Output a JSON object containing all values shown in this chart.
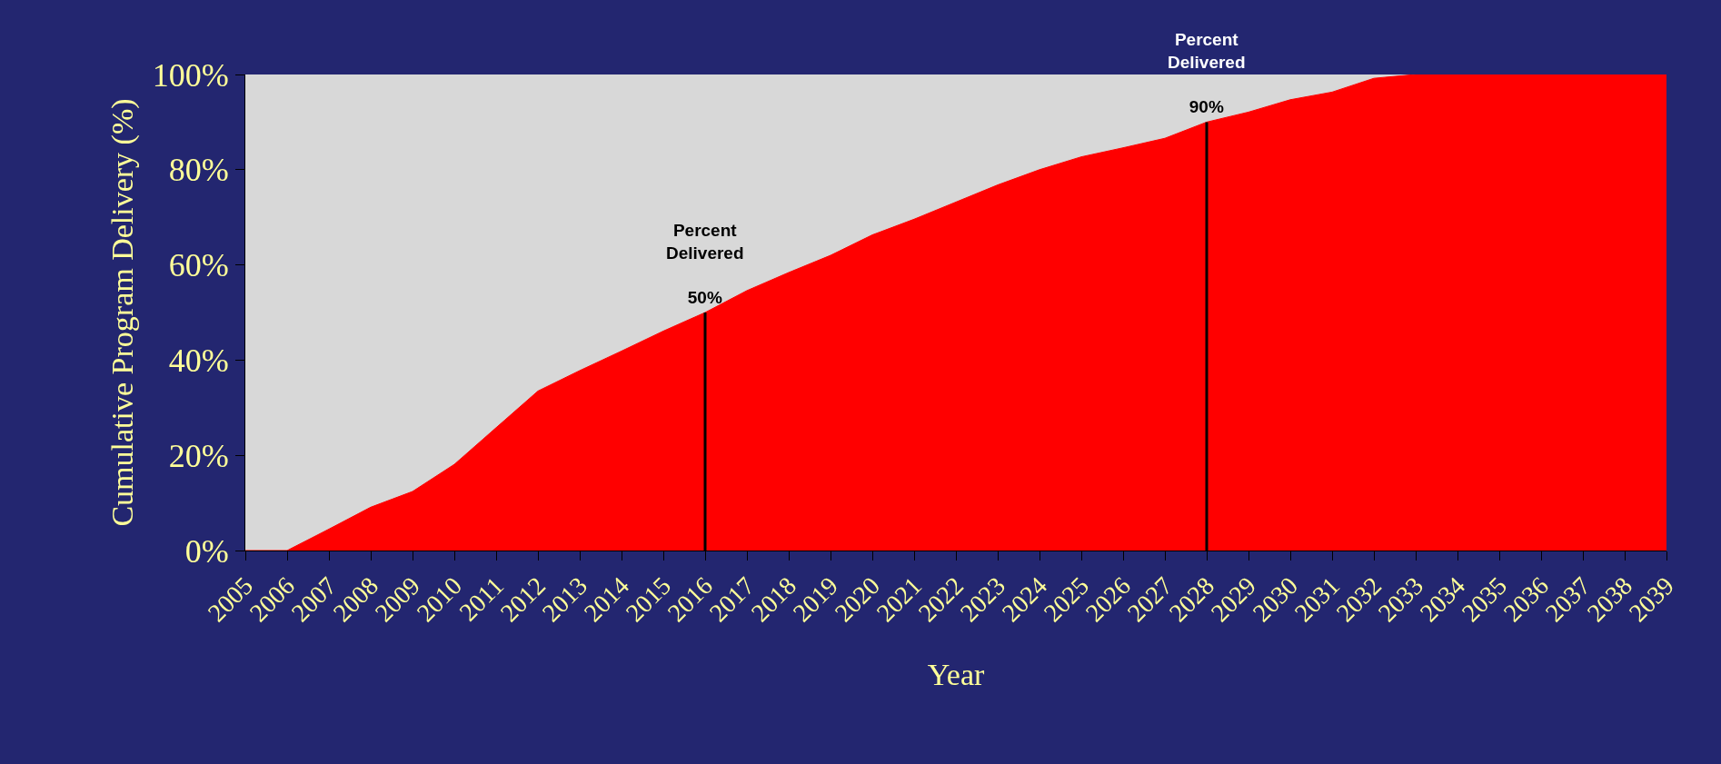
{
  "chart_data": {
    "type": "area",
    "xlabel": "Year",
    "ylabel": "Cumulative Program Delivery (%)",
    "categories": [
      "2005",
      "2006",
      "2007",
      "2008",
      "2009",
      "2010",
      "2011",
      "2012",
      "2013",
      "2014",
      "2015",
      "2016",
      "2017",
      "2018",
      "2019",
      "2020",
      "2021",
      "2022",
      "2023",
      "2024",
      "2025",
      "2026",
      "2027",
      "2028",
      "2029",
      "2030",
      "2031",
      "2032",
      "2033",
      "2034",
      "2035",
      "2036",
      "2037",
      "2038",
      "2039"
    ],
    "series": [
      {
        "color": "#ff0000",
        "values": [
          0,
          0,
          4.5,
          9.1,
          12.4,
          18.1,
          25.8,
          33.5,
          37.8,
          41.9,
          46.1,
          50,
          54.6,
          58.4,
          62,
          66.3,
          69.6,
          73.2,
          76.8,
          80,
          82.7,
          84.6,
          86.6,
          90,
          92.1,
          94.7,
          96.3,
          99.2,
          100,
          100,
          100,
          100,
          100,
          100,
          100
        ]
      }
    ],
    "ylim": [
      0,
      100
    ],
    "yticks": [
      {
        "value": 0,
        "label": "0%"
      },
      {
        "value": 20,
        "label": "20%"
      },
      {
        "value": 40,
        "label": "40%"
      },
      {
        "value": 60,
        "label": "60%"
      },
      {
        "value": 80,
        "label": "80%"
      },
      {
        "value": 100,
        "label": "100%"
      }
    ],
    "ref_lines": [
      {
        "axis": "x",
        "value": "2016",
        "label": "Percent Delivered\n50%",
        "color": "#000000"
      },
      {
        "axis": "x",
        "value": "2028",
        "label": "Percent Delivered\n90%",
        "color": "#000000"
      }
    ],
    "grid": false
  }
}
